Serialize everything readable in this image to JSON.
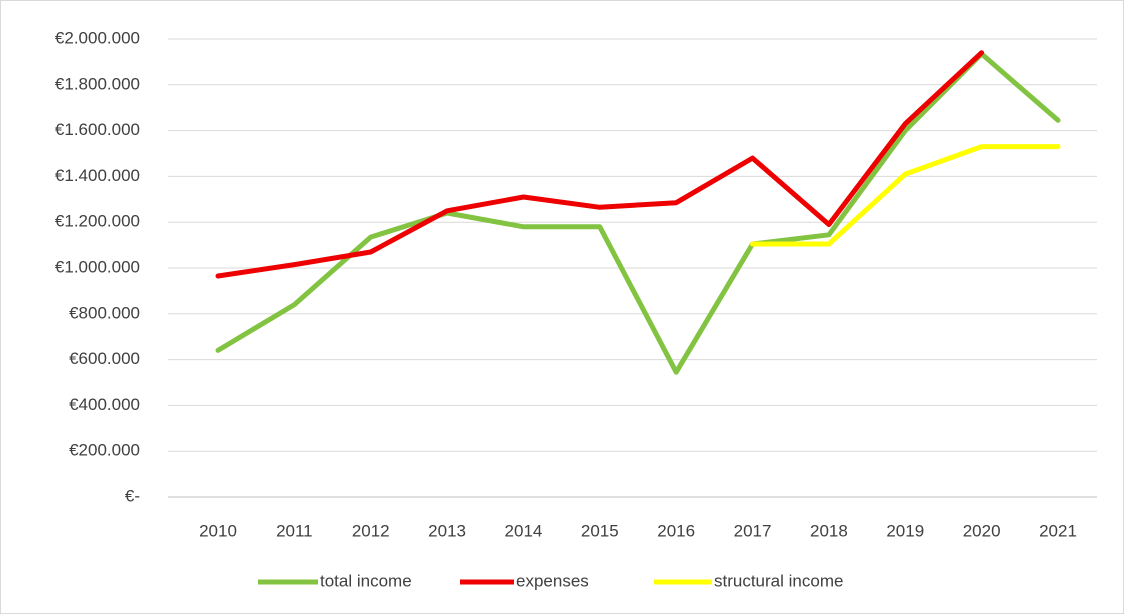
{
  "chart_data": {
    "type": "line",
    "categories": [
      "2010",
      "2011",
      "2012",
      "2013",
      "2014",
      "2015",
      "2016",
      "2017",
      "2018",
      "2019",
      "2020",
      "2021"
    ],
    "series": [
      {
        "name": "total income",
        "color": "#82c341",
        "values": [
          640000,
          840000,
          1135000,
          1240000,
          1180000,
          1180000,
          545000,
          1105000,
          1145000,
          1600000,
          1935000,
          1645000
        ]
      },
      {
        "name": "expenses",
        "color": "#ee0000",
        "values": [
          965000,
          1015000,
          1070000,
          1250000,
          1310000,
          1265000,
          1285000,
          1480000,
          1190000,
          1630000,
          1940000,
          null
        ]
      },
      {
        "name": "structural income",
        "color": "#ffff00",
        "values": [
          null,
          null,
          null,
          null,
          null,
          null,
          null,
          1105000,
          1105000,
          1410000,
          1530000,
          1530000
        ]
      }
    ],
    "ylim": [
      0,
      2000000
    ],
    "yticks": [
      {
        "value": 0,
        "label": "€-"
      },
      {
        "value": 200000,
        "label": "€200.000"
      },
      {
        "value": 400000,
        "label": "€400.000"
      },
      {
        "value": 600000,
        "label": "€600.000"
      },
      {
        "value": 800000,
        "label": "€800.000"
      },
      {
        "value": 1000000,
        "label": "€1.000.000"
      },
      {
        "value": 1200000,
        "label": "€1.200.000"
      },
      {
        "value": 1400000,
        "label": "€1.400.000"
      },
      {
        "value": 1600000,
        "label": "€1.600.000"
      },
      {
        "value": 1800000,
        "label": "€1.800.000"
      },
      {
        "value": 2000000,
        "label": "€2.000.000"
      }
    ],
    "grid": true,
    "legend": "bottom"
  }
}
